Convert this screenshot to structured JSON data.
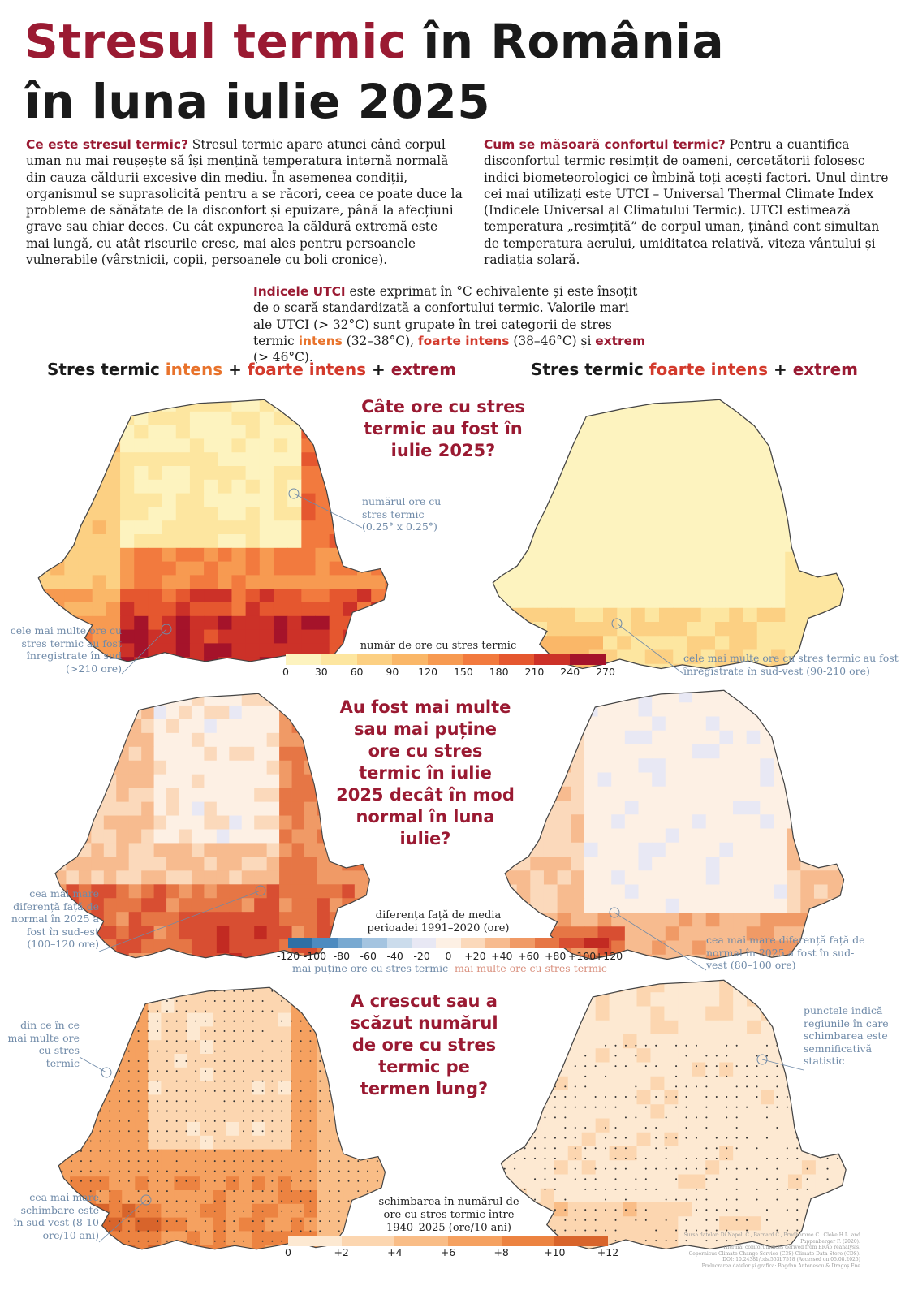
{
  "title": {
    "part1": "Stresul termic",
    "part2": " în România",
    "line2": "în luna iulie 2025"
  },
  "intro_left": {
    "lead": "Ce este stresul termic?",
    "text": " Stresul termic apare atunci când corpul uman nu mai reușește să își mențină temperatura internă normală din cauza căldurii excesive din mediu. În asemenea condiții, organismul se suprasolicită pentru a se răcori, ceea ce poate duce la probleme de sănătate de la disconfort și epuizare, până la afecțiuni grave sau chiar deces. Cu cât expunerea la căldură extremă este mai lungă, cu atât riscurile cresc, mai ales pentru persoanele vulnerabile (vârstnicii, copii, persoanele cu boli cronice)."
  },
  "intro_right": {
    "lead": "Cum se măsoară confortul termic?",
    "text": "  Pentru a cuantifica disconfortul termic resimțit de oameni, cercetătorii folosesc indici biometeorologici ce îmbină toți acești factori. Unul dintre cei mai utilizați este UTCI – Universal Thermal Climate Index (Indicele Universal al Climatului Termic). UTCI estimează temperatura „resimțită” de corpul uman, ținând cont simultan de temperatura aerului, umiditatea relativă, viteza vântului și radiația solară."
  },
  "utci": {
    "lead": "Indicele UTCI",
    "t1": " este exprimat în °C echivalente și este însoțit de o scară standardizată a confortului termic. Valorile mari ale UTCI (> 32°C) sunt grupate în trei categorii de stres termic ",
    "intens": "intens",
    "t2": " (32–38°C), ",
    "foarte": "foarte intens",
    "t3": " (38–46°C) și ",
    "extrem": "extrem",
    "t4": " (> 46°C)."
  },
  "col_left": {
    "a": "Stres termic ",
    "b": "intens",
    "c": " + ",
    "d": "foarte intens",
    "e": " + ",
    "f": "extrem"
  },
  "col_right": {
    "a": "Stres termic ",
    "b": "foarte intens",
    "c": " + ",
    "d": "extrem"
  },
  "questions": {
    "q1": "Câte ore cu stres termic au fost în iulie 2025?",
    "q2": "Au fost mai multe sau mai puține ore cu stres termic în iulie 2025 decât în mod normal în luna iulie?",
    "q3": "A crescut sau a scăzut numărul de ore cu stres termic pe termen lung?"
  },
  "notes": {
    "n1": "numărul ore cu stres termic (0.25° x 0.25°)",
    "n2": "cele mai multe ore cu stres termic au fost înregistrate în sud (>210 ore)",
    "n3": "cele mai multe ore cu stres termic au fost înregistrate în sud-vest (90-210 ore)",
    "n4": "cea mai mare diferență față de normal în 2025 a fost în sud-est (100–120 ore)",
    "n5": "cea mai mare diferență față de normal în 2025 a fost în sud-vest (80–100 ore)",
    "n6": "din ce în ce mai multe ore cu stres termic",
    "n7": "punctele indică regiunile în care schimbarea este semnificativă statistic",
    "n8": "cea mai mare schimbare este în sud-vest (8-10 ore/10 ani)"
  },
  "legend1": {
    "title": "număr de ore cu stres termic",
    "ticks": [
      "0",
      "30",
      "60",
      "90",
      "120",
      "150",
      "180",
      "210",
      "240",
      "270"
    ],
    "colors": [
      "#fdf3bf",
      "#fde6a0",
      "#fcd083",
      "#fab768",
      "#f79a51",
      "#f27a3e",
      "#e5572f",
      "#cc3128",
      "#a5132a"
    ]
  },
  "legend2": {
    "title": "diferența față de media perioadei 1991–2020 (ore)",
    "ticks": [
      "-120",
      "-100",
      "-80",
      "-60",
      "-40",
      "-20",
      "0",
      "+20",
      "+40",
      "+60",
      "+80",
      "+100",
      "+120"
    ],
    "colors": [
      "#2f6fa4",
      "#4d8bc0",
      "#78a9d1",
      "#a4c4e0",
      "#cbdcec",
      "#e8e8f4",
      "#fdf0e4",
      "#fbd9bb",
      "#f7bb8f",
      "#f09a66",
      "#e67645",
      "#d84e32",
      "#c22a22"
    ],
    "less": "mai puține ore cu stres termic",
    "more": "mai multe ore cu stres termic"
  },
  "legend3": {
    "title": "schimbarea în numărul de ore cu stres termic între 1940–2025 (ore/10 ani)",
    "ticks": [
      "0",
      "+2",
      "+4",
      "+6",
      "+8",
      "+10",
      "+12"
    ],
    "colors": [
      "#fde9d2",
      "#fcd6b0",
      "#f9bd87",
      "#f5a160",
      "#ec8341",
      "#d8642b"
    ]
  },
  "credits": [
    "Sursa datelor: Di Napoli C., Barnard C., Prudhomme C., Cloke H.L. and Pappenberger F. (2020):",
    "Thermal comfort indices derived from ERA5 reanalysis.",
    "Copernicus Climate Change Service (C3S) Climate Data Store (CDS).",
    "DOI: 10.24381/cds.553b7518 (Accessed on 05.08.2025)",
    "Prelucrarea datelor și grafica: Bogdan Antonescu & Dragoș Ene"
  ],
  "palette": {
    "accent_dark": "#9a1a32",
    "accent_orange": "#e8732c",
    "accent_red": "#d33a2c",
    "note_blue": "#6f8aa8"
  }
}
